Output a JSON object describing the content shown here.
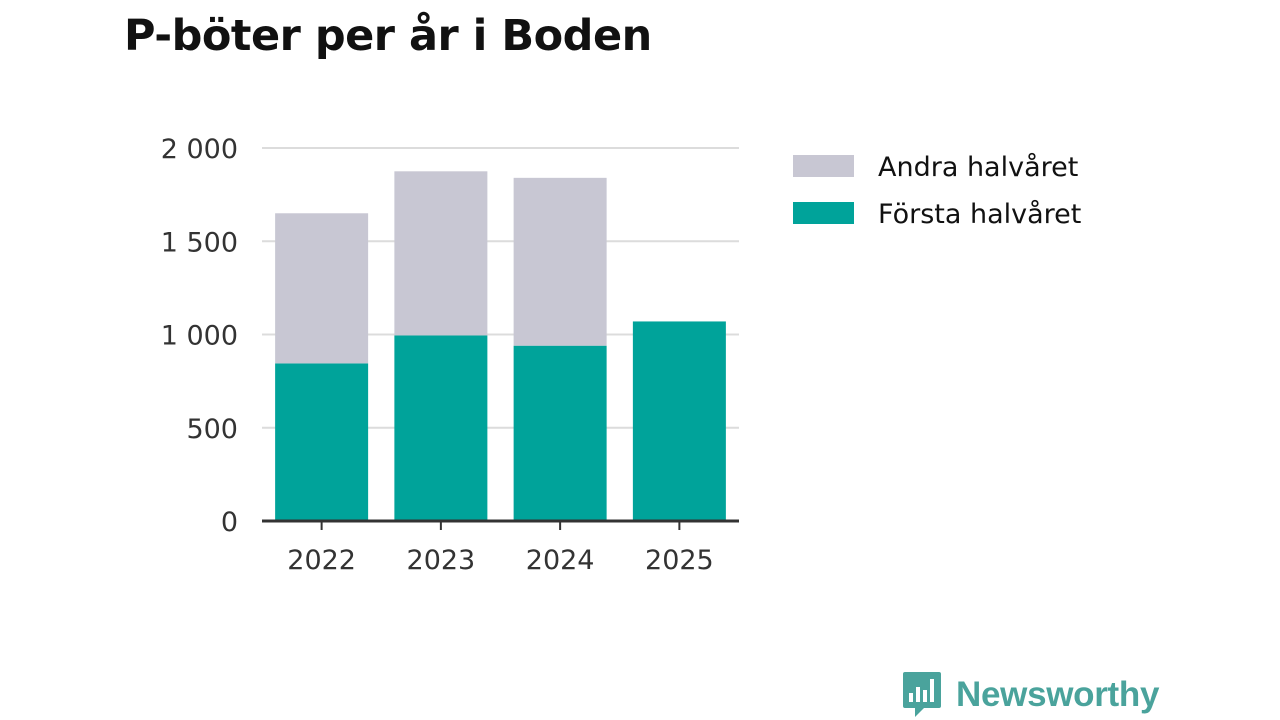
{
  "chart_data": {
    "type": "bar",
    "stacked": true,
    "title": "P-böter per år i Boden",
    "categories": [
      "2022",
      "2023",
      "2024",
      "2025"
    ],
    "series": [
      {
        "name": "Första halvåret",
        "color": "#00a39a",
        "values": [
          845,
          995,
          940,
          1070
        ]
      },
      {
        "name": "Andra halvåret",
        "color": "#c8c7d3",
        "values": [
          805,
          880,
          900,
          0
        ]
      }
    ],
    "legend_order": [
      "Andra halvåret",
      "Första halvåret"
    ],
    "yticks": [
      0,
      500,
      1000,
      1500,
      2000
    ],
    "ytick_labels": [
      "0",
      "500",
      "1 000",
      "1 500",
      "2 000"
    ],
    "ylim": [
      0,
      2000
    ],
    "xlabel": "",
    "ylabel": "",
    "grid": true,
    "legend_position": "right"
  },
  "brand": {
    "name": "Newsworthy",
    "logo_icon": "newsworthy-bar-chart-icon",
    "color": "#4aa39c"
  }
}
